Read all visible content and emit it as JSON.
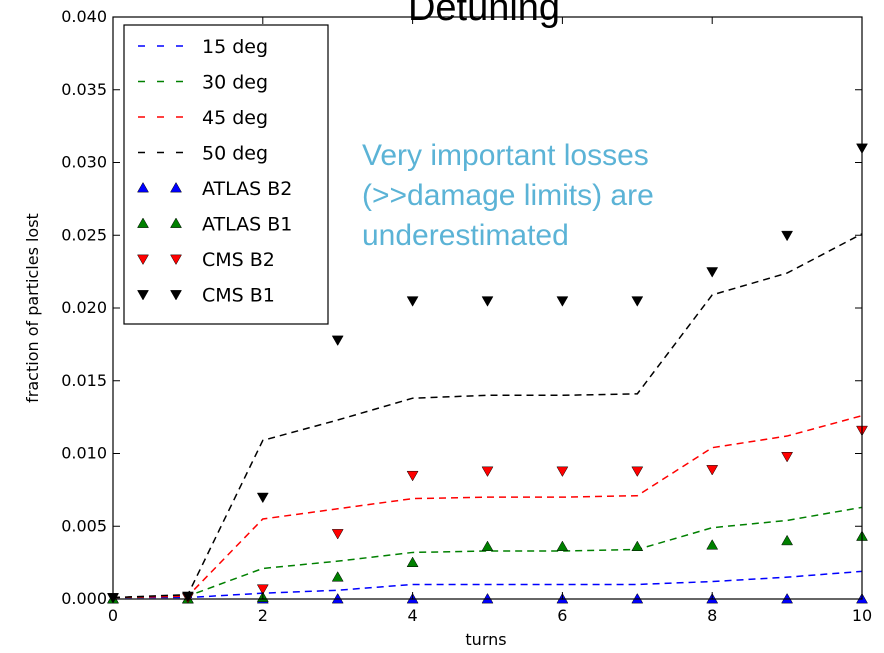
{
  "chart_data": {
    "type": "line",
    "title": "Detuning",
    "xlabel": "turns",
    "ylabel": "fraction of particles lost",
    "xlim": [
      0,
      10
    ],
    "ylim": [
      0,
      0.04
    ],
    "x_ticks": [
      0,
      2,
      4,
      6,
      8,
      10
    ],
    "y_ticks": [
      0.0,
      0.005,
      0.01,
      0.015,
      0.02,
      0.025,
      0.03,
      0.035,
      0.04
    ],
    "x_tick_labels": [
      "0",
      "2",
      "4",
      "6",
      "8",
      "10"
    ],
    "y_tick_labels": [
      "0.000",
      "0.005",
      "0.010",
      "0.015",
      "0.020",
      "0.025",
      "0.030",
      "0.035",
      "0.040"
    ],
    "grid": false,
    "legend_position": "top-left",
    "annotation": {
      "lines": [
        "Very important losses",
        "(>>damage limits) are",
        "underestimated"
      ],
      "color": "#5bb3d6"
    },
    "line_series": [
      {
        "name": "15 deg",
        "color": "#0000ff",
        "style": "dashed",
        "x": [
          0,
          1,
          2,
          3,
          4,
          5,
          6,
          7,
          8,
          9,
          10
        ],
        "y": [
          0.0001,
          0.0001,
          0.0004,
          0.0006,
          0.001,
          0.001,
          0.001,
          0.001,
          0.0012,
          0.0015,
          0.0019
        ]
      },
      {
        "name": "30 deg",
        "color": "#008000",
        "style": "dashed",
        "x": [
          0,
          1,
          2,
          3,
          4,
          5,
          6,
          7,
          8,
          9,
          10
        ],
        "y": [
          0.0001,
          0.0002,
          0.0021,
          0.0026,
          0.0032,
          0.0033,
          0.0033,
          0.0034,
          0.0049,
          0.0054,
          0.0063
        ]
      },
      {
        "name": "45 deg",
        "color": "#ff0000",
        "style": "dashed",
        "x": [
          0,
          1,
          2,
          3,
          4,
          5,
          6,
          7,
          8,
          9,
          10
        ],
        "y": [
          0.0001,
          0.0002,
          0.0055,
          0.0062,
          0.0069,
          0.007,
          0.007,
          0.0071,
          0.0104,
          0.0112,
          0.0126
        ]
      },
      {
        "name": "50 deg",
        "color": "#000000",
        "style": "dashed",
        "x": [
          0,
          1,
          2,
          3,
          4,
          5,
          6,
          7,
          8,
          9,
          10
        ],
        "y": [
          0.0001,
          0.0003,
          0.0109,
          0.0123,
          0.0138,
          0.014,
          0.014,
          0.0141,
          0.0209,
          0.0224,
          0.0251
        ]
      }
    ],
    "marker_series": [
      {
        "name": "ATLAS B2",
        "color": "#0000ff",
        "marker": "triangle-up",
        "x": [
          0,
          1,
          2,
          3,
          4,
          5,
          6,
          7,
          8,
          9,
          10
        ],
        "y": [
          0,
          0,
          0,
          0,
          0,
          0,
          0,
          0,
          0,
          0,
          0
        ]
      },
      {
        "name": "ATLAS B1",
        "color": "#008000",
        "marker": "triangle-up",
        "x": [
          0,
          1,
          2,
          3,
          4,
          5,
          6,
          7,
          8,
          9,
          10
        ],
        "y": [
          0,
          0,
          0.0001,
          0.0015,
          0.0025,
          0.0036,
          0.0036,
          0.0036,
          0.0037,
          0.004,
          0.0043
        ]
      },
      {
        "name": "CMS B2",
        "color": "#ff0000",
        "marker": "triangle-down",
        "x": [
          0,
          1,
          2,
          3,
          4,
          5,
          6,
          7,
          8,
          9,
          10
        ],
        "y": [
          0.0001,
          0.0001,
          0.0007,
          0.0045,
          0.0085,
          0.0088,
          0.0088,
          0.0088,
          0.0089,
          0.0098,
          0.0116
        ]
      },
      {
        "name": "CMS B1",
        "color": "#000000",
        "marker": "triangle-down",
        "x": [
          0,
          1,
          2,
          3,
          4,
          5,
          6,
          7,
          8,
          9,
          10
        ],
        "y": [
          0.0001,
          0.0002,
          0.007,
          0.0178,
          0.0205,
          0.0205,
          0.0205,
          0.0205,
          0.0225,
          0.025,
          0.031
        ]
      }
    ]
  }
}
